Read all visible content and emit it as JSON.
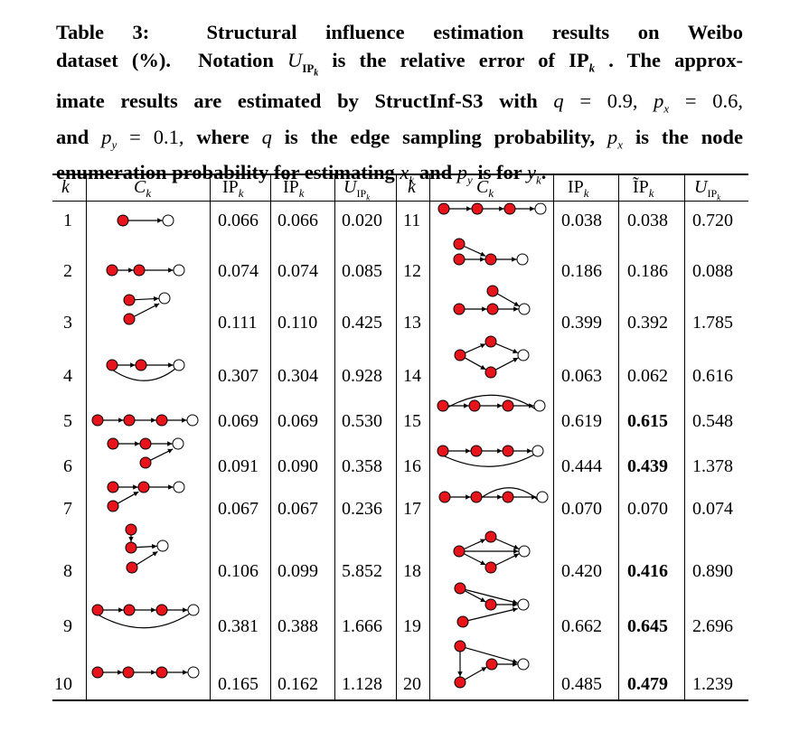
{
  "caption": {
    "lines": [
      "Table 3:  Structural influence estimation results on Weibo",
      "dataset (%).  Notation U_IP_k  is the relative error of IP_k . The approx-",
      "imate results are estimated by StructInf-S3 with q = 0.9, p_x = 0.6,",
      "and p_y = 0.1, where q is the edge sampling probability, p_x is the node",
      "enumeration probability for estimating x_k and p_y is for y_k."
    ]
  },
  "table": {
    "headers": [
      "k",
      "C_k",
      "IP_k",
      "ĨP_k",
      "U_IP_k",
      "k",
      "C_k",
      "IP_k",
      "ĨP_k",
      "U_IP_k"
    ],
    "left_rows": [
      {
        "k": "1",
        "ip": "0.066",
        "ipt": "0.066",
        "u": "0.020",
        "bold": false
      },
      {
        "k": "2",
        "ip": "0.074",
        "ipt": "0.074",
        "u": "0.085",
        "bold": false
      },
      {
        "k": "3",
        "ip": "0.111",
        "ipt": "0.110",
        "u": "0.425",
        "bold": false
      },
      {
        "k": "4",
        "ip": "0.307",
        "ipt": "0.304",
        "u": "0.928",
        "bold": false
      },
      {
        "k": "5",
        "ip": "0.069",
        "ipt": "0.069",
        "u": "0.530",
        "bold": false
      },
      {
        "k": "6",
        "ip": "0.091",
        "ipt": "0.090",
        "u": "0.358",
        "bold": false
      },
      {
        "k": "7",
        "ip": "0.067",
        "ipt": "0.067",
        "u": "0.236",
        "bold": false
      },
      {
        "k": "8",
        "ip": "0.106",
        "ipt": "0.099",
        "u": "5.852",
        "bold": false
      },
      {
        "k": "9",
        "ip": "0.381",
        "ipt": "0.388",
        "u": "1.666",
        "bold": false
      },
      {
        "k": "10",
        "ip": "0.165",
        "ipt": "0.162",
        "u": "1.128",
        "bold": false
      }
    ],
    "right_rows": [
      {
        "k": "11",
        "ip": "0.038",
        "ipt": "0.038",
        "u": "0.720",
        "bold": false
      },
      {
        "k": "12",
        "ip": "0.186",
        "ipt": "0.186",
        "u": "0.088",
        "bold": false
      },
      {
        "k": "13",
        "ip": "0.399",
        "ipt": "0.392",
        "u": "1.785",
        "bold": false
      },
      {
        "k": "14",
        "ip": "0.063",
        "ipt": "0.062",
        "u": "0.616",
        "bold": false
      },
      {
        "k": "15",
        "ip": "0.619",
        "ipt": "0.615",
        "u": "0.548",
        "bold": true
      },
      {
        "k": "16",
        "ip": "0.444",
        "ipt": "0.439",
        "u": "1.378",
        "bold": true
      },
      {
        "k": "17",
        "ip": "0.070",
        "ipt": "0.070",
        "u": "0.074",
        "bold": false
      },
      {
        "k": "18",
        "ip": "0.420",
        "ipt": "0.416",
        "u": "0.890",
        "bold": true
      },
      {
        "k": "19",
        "ip": "0.662",
        "ipt": "0.645",
        "u": "2.696",
        "bold": true
      },
      {
        "k": "20",
        "ip": "0.485",
        "ipt": "0.479",
        "u": "1.239",
        "bold": true
      }
    ]
  },
  "colors": {
    "node_fill": "#e8141c",
    "node_stroke": "#000000",
    "edge": "#000000",
    "target_fill": "#ffffff"
  }
}
